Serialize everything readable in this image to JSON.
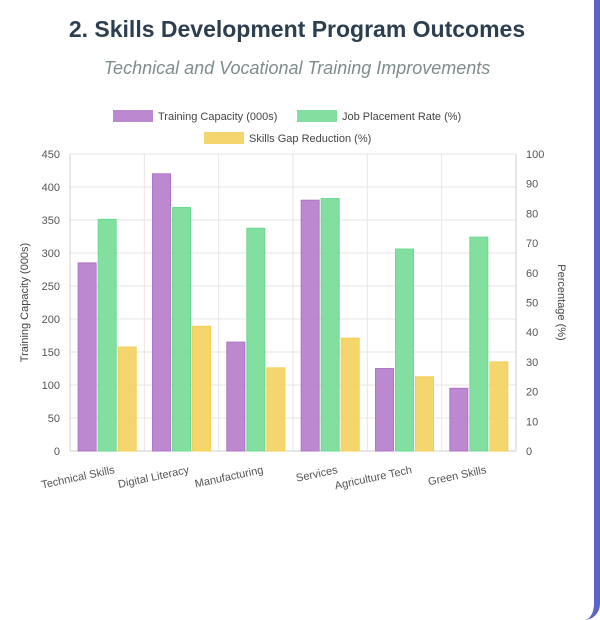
{
  "title": "2. Skills Development Program Outcomes",
  "subtitle": "Technical and Vocational Training Improvements",
  "chart_data": {
    "type": "bar",
    "categories": [
      "Technical Skills",
      "Digital Literacy",
      "Manufacturing",
      "Services",
      "Agriculture Tech",
      "Green Skills"
    ],
    "series": [
      {
        "name": "Training Capacity (000s)",
        "axis": "left",
        "color": "#b074c8",
        "values": [
          285,
          420,
          165,
          380,
          125,
          95
        ]
      },
      {
        "name": "Job Placement Rate (%)",
        "axis": "right",
        "color": "#6cd98f",
        "values": [
          78,
          82,
          75,
          85,
          68,
          72
        ]
      },
      {
        "name": "Skills Gap Reduction (%)",
        "axis": "right",
        "color": "#f3cf55",
        "values": [
          35,
          42,
          28,
          38,
          25,
          30
        ]
      }
    ],
    "ylabel_left": "Training Capacity (000s)",
    "ylabel_right": "Percentage (%)",
    "ylim_left": [
      0,
      450
    ],
    "ylim_right": [
      0,
      100
    ],
    "yticks_left": [
      "0",
      "50",
      "100",
      "150",
      "200",
      "250",
      "300",
      "350",
      "400",
      "450"
    ],
    "yticks_right": [
      "0",
      "10",
      "20",
      "30",
      "40",
      "50",
      "60",
      "70",
      "80",
      "90",
      "100"
    ],
    "grid": true,
    "legend_position": "top"
  }
}
